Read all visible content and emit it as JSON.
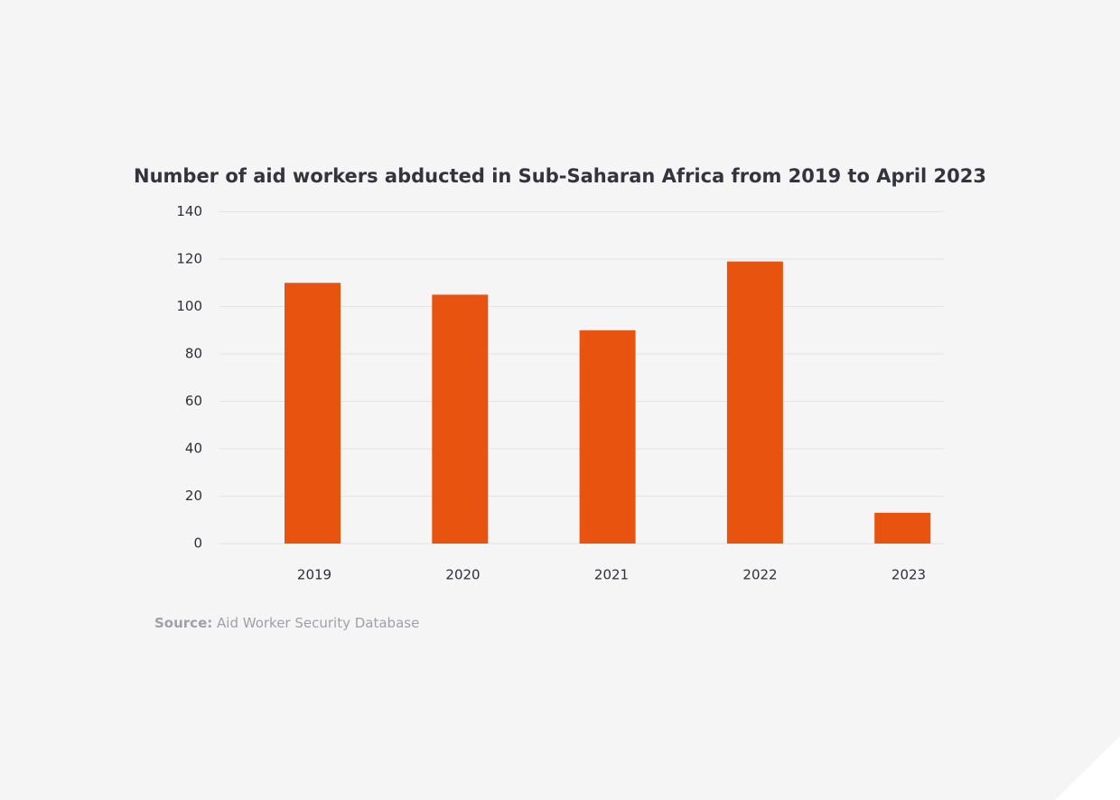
{
  "chart_data": {
    "type": "bar",
    "title": "Number of aid workers abducted in Sub-Saharan Africa from 2019 to April 2023",
    "categories": [
      "2019",
      "2020",
      "2021",
      "2022",
      "2023"
    ],
    "values": [
      110,
      105,
      90,
      119,
      13
    ],
    "color": "#e8540f",
    "ylim": [
      0,
      140
    ],
    "yticks": [
      0,
      20,
      40,
      60,
      80,
      100,
      120,
      140
    ],
    "grid": true,
    "source_label": "Source:",
    "source_text": "Aid Worker Security Database"
  }
}
